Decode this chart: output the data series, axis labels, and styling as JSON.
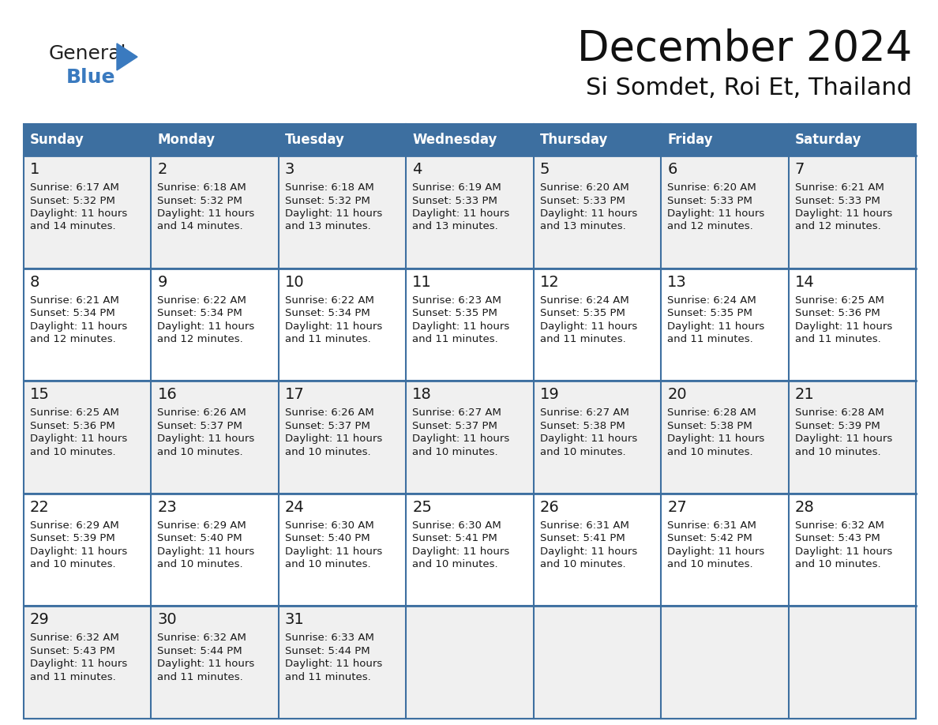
{
  "title": "December 2024",
  "subtitle": "Si Somdet, Roi Et, Thailand",
  "header_color": "#3d6fa0",
  "header_text_color": "#ffffff",
  "row_bg_even": "#f0f0f0",
  "row_bg_odd": "#ffffff",
  "row_bg_last": "#f0f0f0",
  "border_color": "#3d6fa0",
  "text_color": "#1a1a1a",
  "day_names": [
    "Sunday",
    "Monday",
    "Tuesday",
    "Wednesday",
    "Thursday",
    "Friday",
    "Saturday"
  ],
  "days": [
    {
      "day": 1,
      "col": 0,
      "row": 0,
      "sunrise": "6:17 AM",
      "sunset": "5:32 PM",
      "daylight": "11 hours and 14 minutes."
    },
    {
      "day": 2,
      "col": 1,
      "row": 0,
      "sunrise": "6:18 AM",
      "sunset": "5:32 PM",
      "daylight": "11 hours and 14 minutes."
    },
    {
      "day": 3,
      "col": 2,
      "row": 0,
      "sunrise": "6:18 AM",
      "sunset": "5:32 PM",
      "daylight": "11 hours and 13 minutes."
    },
    {
      "day": 4,
      "col": 3,
      "row": 0,
      "sunrise": "6:19 AM",
      "sunset": "5:33 PM",
      "daylight": "11 hours and 13 minutes."
    },
    {
      "day": 5,
      "col": 4,
      "row": 0,
      "sunrise": "6:20 AM",
      "sunset": "5:33 PM",
      "daylight": "11 hours and 13 minutes."
    },
    {
      "day": 6,
      "col": 5,
      "row": 0,
      "sunrise": "6:20 AM",
      "sunset": "5:33 PM",
      "daylight": "11 hours and 12 minutes."
    },
    {
      "day": 7,
      "col": 6,
      "row": 0,
      "sunrise": "6:21 AM",
      "sunset": "5:33 PM",
      "daylight": "11 hours and 12 minutes."
    },
    {
      "day": 8,
      "col": 0,
      "row": 1,
      "sunrise": "6:21 AM",
      "sunset": "5:34 PM",
      "daylight": "11 hours and 12 minutes."
    },
    {
      "day": 9,
      "col": 1,
      "row": 1,
      "sunrise": "6:22 AM",
      "sunset": "5:34 PM",
      "daylight": "11 hours and 12 minutes."
    },
    {
      "day": 10,
      "col": 2,
      "row": 1,
      "sunrise": "6:22 AM",
      "sunset": "5:34 PM",
      "daylight": "11 hours and 11 minutes."
    },
    {
      "day": 11,
      "col": 3,
      "row": 1,
      "sunrise": "6:23 AM",
      "sunset": "5:35 PM",
      "daylight": "11 hours and 11 minutes."
    },
    {
      "day": 12,
      "col": 4,
      "row": 1,
      "sunrise": "6:24 AM",
      "sunset": "5:35 PM",
      "daylight": "11 hours and 11 minutes."
    },
    {
      "day": 13,
      "col": 5,
      "row": 1,
      "sunrise": "6:24 AM",
      "sunset": "5:35 PM",
      "daylight": "11 hours and 11 minutes."
    },
    {
      "day": 14,
      "col": 6,
      "row": 1,
      "sunrise": "6:25 AM",
      "sunset": "5:36 PM",
      "daylight": "11 hours and 11 minutes."
    },
    {
      "day": 15,
      "col": 0,
      "row": 2,
      "sunrise": "6:25 AM",
      "sunset": "5:36 PM",
      "daylight": "11 hours and 10 minutes."
    },
    {
      "day": 16,
      "col": 1,
      "row": 2,
      "sunrise": "6:26 AM",
      "sunset": "5:37 PM",
      "daylight": "11 hours and 10 minutes."
    },
    {
      "day": 17,
      "col": 2,
      "row": 2,
      "sunrise": "6:26 AM",
      "sunset": "5:37 PM",
      "daylight": "11 hours and 10 minutes."
    },
    {
      "day": 18,
      "col": 3,
      "row": 2,
      "sunrise": "6:27 AM",
      "sunset": "5:37 PM",
      "daylight": "11 hours and 10 minutes."
    },
    {
      "day": 19,
      "col": 4,
      "row": 2,
      "sunrise": "6:27 AM",
      "sunset": "5:38 PM",
      "daylight": "11 hours and 10 minutes."
    },
    {
      "day": 20,
      "col": 5,
      "row": 2,
      "sunrise": "6:28 AM",
      "sunset": "5:38 PM",
      "daylight": "11 hours and 10 minutes."
    },
    {
      "day": 21,
      "col": 6,
      "row": 2,
      "sunrise": "6:28 AM",
      "sunset": "5:39 PM",
      "daylight": "11 hours and 10 minutes."
    },
    {
      "day": 22,
      "col": 0,
      "row": 3,
      "sunrise": "6:29 AM",
      "sunset": "5:39 PM",
      "daylight": "11 hours and 10 minutes."
    },
    {
      "day": 23,
      "col": 1,
      "row": 3,
      "sunrise": "6:29 AM",
      "sunset": "5:40 PM",
      "daylight": "11 hours and 10 minutes."
    },
    {
      "day": 24,
      "col": 2,
      "row": 3,
      "sunrise": "6:30 AM",
      "sunset": "5:40 PM",
      "daylight": "11 hours and 10 minutes."
    },
    {
      "day": 25,
      "col": 3,
      "row": 3,
      "sunrise": "6:30 AM",
      "sunset": "5:41 PM",
      "daylight": "11 hours and 10 minutes."
    },
    {
      "day": 26,
      "col": 4,
      "row": 3,
      "sunrise": "6:31 AM",
      "sunset": "5:41 PM",
      "daylight": "11 hours and 10 minutes."
    },
    {
      "day": 27,
      "col": 5,
      "row": 3,
      "sunrise": "6:31 AM",
      "sunset": "5:42 PM",
      "daylight": "11 hours and 10 minutes."
    },
    {
      "day": 28,
      "col": 6,
      "row": 3,
      "sunrise": "6:32 AM",
      "sunset": "5:43 PM",
      "daylight": "11 hours and 10 minutes."
    },
    {
      "day": 29,
      "col": 0,
      "row": 4,
      "sunrise": "6:32 AM",
      "sunset": "5:43 PM",
      "daylight": "11 hours and 11 minutes."
    },
    {
      "day": 30,
      "col": 1,
      "row": 4,
      "sunrise": "6:32 AM",
      "sunset": "5:44 PM",
      "daylight": "11 hours and 11 minutes."
    },
    {
      "day": 31,
      "col": 2,
      "row": 4,
      "sunrise": "6:33 AM",
      "sunset": "5:44 PM",
      "daylight": "11 hours and 11 minutes."
    }
  ],
  "num_rows": 5,
  "num_cols": 7,
  "logo_general_color": "#222222",
  "logo_blue_color": "#3a7abf",
  "title_fontsize": 38,
  "subtitle_fontsize": 22,
  "header_fontsize": 12,
  "day_num_fontsize": 13,
  "cell_text_fontsize": 9.5
}
